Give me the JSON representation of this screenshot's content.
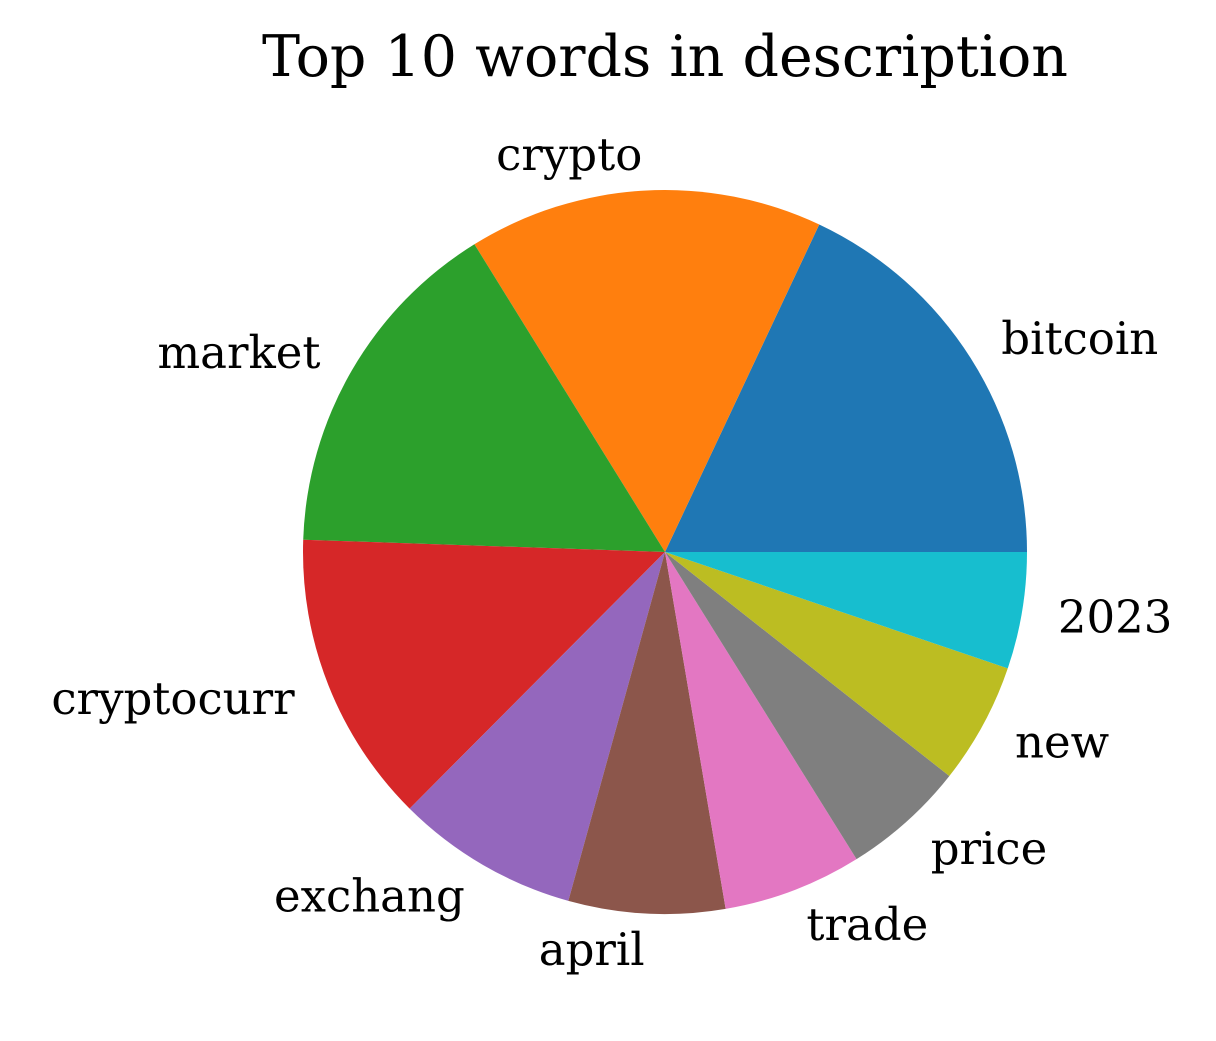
{
  "chart_data": {
    "type": "pie",
    "title": "Top 10 words in description",
    "start_angle_deg": 0,
    "direction": "counterclockwise",
    "slices": [
      {
        "label": "bitcoin",
        "value": 18.3,
        "color": "#1f77b4"
      },
      {
        "label": "crypto",
        "value": 16.1,
        "color": "#ff7f0e"
      },
      {
        "label": "market",
        "value": 15.9,
        "color": "#2ca02c"
      },
      {
        "label": "cryptocurr",
        "value": 13.3,
        "color": "#d62728"
      },
      {
        "label": "exchang",
        "value": 8.3,
        "color": "#9467bd"
      },
      {
        "label": "april",
        "value": 7.1,
        "color": "#8c564b"
      },
      {
        "label": "trade",
        "value": 6.3,
        "color": "#e377c2"
      },
      {
        "label": "price",
        "value": 5.6,
        "color": "#7f7f7f"
      },
      {
        "label": "new",
        "value": 5.5,
        "color": "#bcbd22"
      },
      {
        "label": "2023",
        "value": 5.3,
        "color": "#17becf"
      }
    ]
  }
}
